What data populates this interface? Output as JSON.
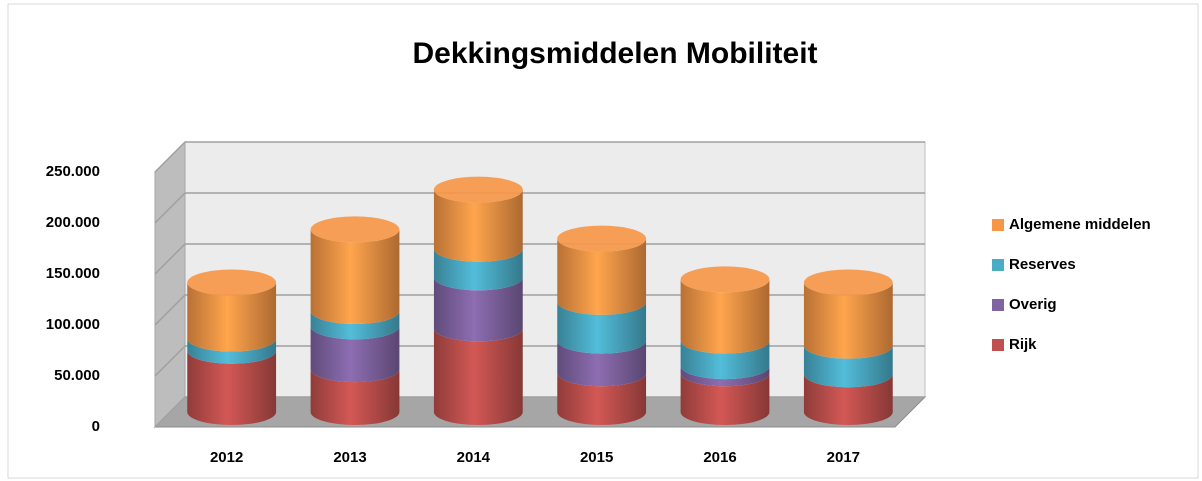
{
  "chart_data": {
    "type": "bar3d_stacked",
    "title": "Dekkingsmiddelen Mobiliteit",
    "categories": [
      "2012",
      "2013",
      "2014",
      "2015",
      "2016",
      "2017"
    ],
    "series": [
      {
        "name": "Rijk",
        "color": "#c0504d",
        "values": [
          60000,
          42000,
          82000,
          38000,
          38000,
          37000
        ]
      },
      {
        "name": "Overig",
        "color": "#8064a2",
        "values": [
          0,
          42000,
          50000,
          32000,
          7000,
          0
        ]
      },
      {
        "name": "Reserves",
        "color": "#4bacc6",
        "values": [
          12000,
          15000,
          28000,
          38000,
          25000,
          28000
        ]
      },
      {
        "name": "Algemene middelen",
        "color": "#f79646",
        "values": [
          55000,
          80000,
          58000,
          62000,
          60000,
          62000
        ]
      }
    ],
    "ylim": [
      0,
      250000
    ],
    "yticks": [
      0,
      {
        "value": 50000,
        "label": "50.000"
      },
      {
        "value": 100000,
        "label": "100.000"
      },
      {
        "value": 150000,
        "label": "150.000"
      },
      {
        "value": 200000,
        "label": "200.000"
      },
      {
        "value": 250000,
        "label": "250.000"
      }
    ],
    "grid": true
  }
}
